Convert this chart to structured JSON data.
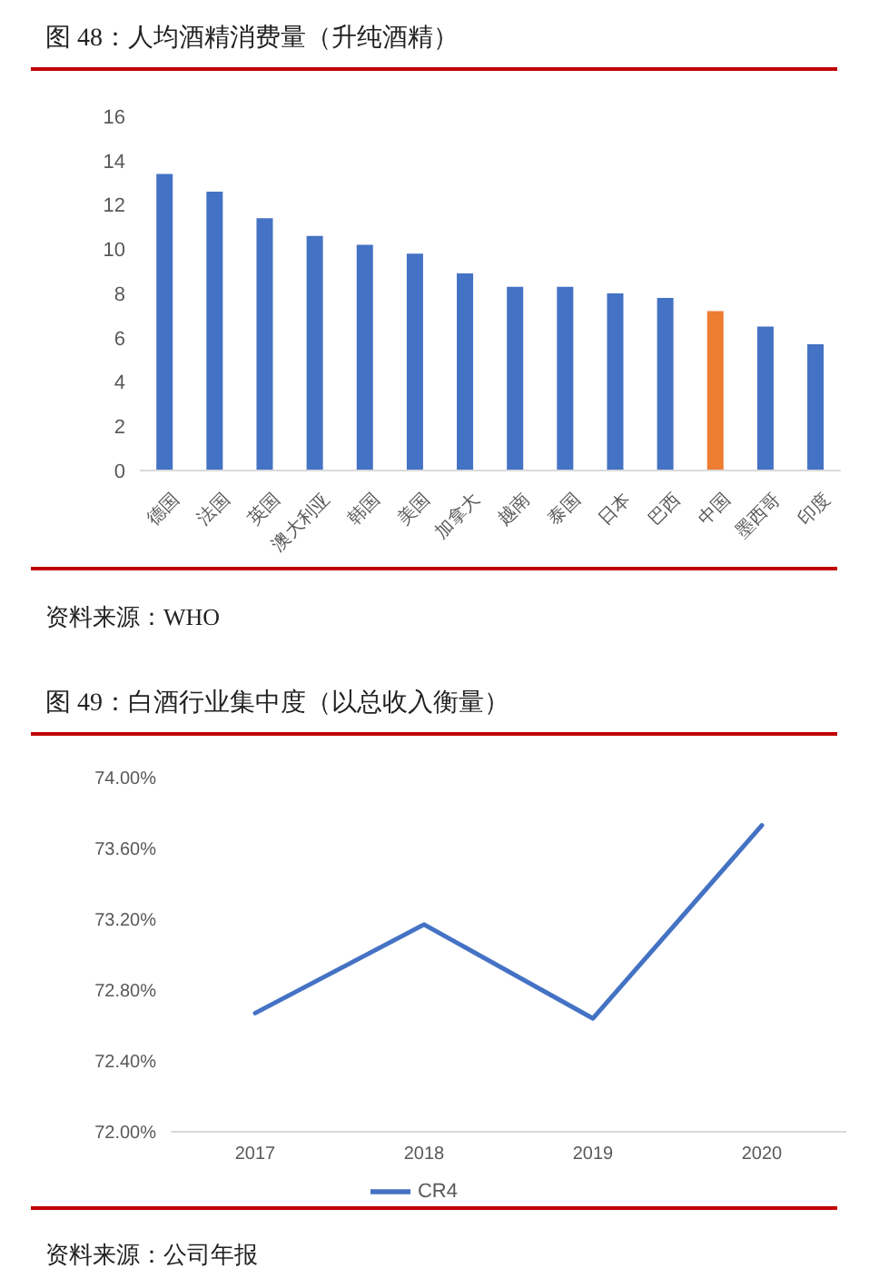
{
  "chart_data": [
    {
      "type": "bar",
      "title": "图 48：人均酒精消费量（升纯酒精）",
      "categories": [
        "德国",
        "法国",
        "英国",
        "澳大利亚",
        "韩国",
        "美国",
        "加拿大",
        "越南",
        "泰国",
        "日本",
        "巴西",
        "中国",
        "墨西哥",
        "印度"
      ],
      "values": [
        13.4,
        12.6,
        11.4,
        10.6,
        10.2,
        9.8,
        8.9,
        8.3,
        8.3,
        8.0,
        7.8,
        7.2,
        6.5,
        5.7
      ],
      "colors": [
        "#4472c4",
        "#4472c4",
        "#4472c4",
        "#4472c4",
        "#4472c4",
        "#4472c4",
        "#4472c4",
        "#4472c4",
        "#4472c4",
        "#4472c4",
        "#4472c4",
        "#ed7d31",
        "#4472c4",
        "#4472c4"
      ],
      "ylim": [
        0,
        16
      ],
      "yticks": [
        0,
        2,
        4,
        6,
        8,
        10,
        12,
        14,
        16
      ],
      "annotations": [
        "资料来源：WHO"
      ]
    },
    {
      "type": "line",
      "title": "图 49：白酒行业集中度（以总收入衡量）",
      "categories": [
        "2017",
        "2018",
        "2019",
        "2020"
      ],
      "series": [
        {
          "name": "CR4",
          "color": "#4472c4",
          "values": [
            72.67,
            73.17,
            72.64,
            73.73
          ]
        }
      ],
      "ylim": [
        72,
        74
      ],
      "yticks": [
        {
          "value": 72,
          "label": "72.00%"
        },
        {
          "value": 72.4,
          "label": "72.40%"
        },
        {
          "value": 72.8,
          "label": "72.80%"
        },
        {
          "value": 73.2,
          "label": "73.20%"
        },
        {
          "value": 73.6,
          "label": "73.60%"
        },
        {
          "value": 74,
          "label": "74.00%"
        }
      ],
      "legend": "bottom",
      "marker": "none",
      "annotations": [
        "资料来源：公司年报"
      ]
    }
  ]
}
